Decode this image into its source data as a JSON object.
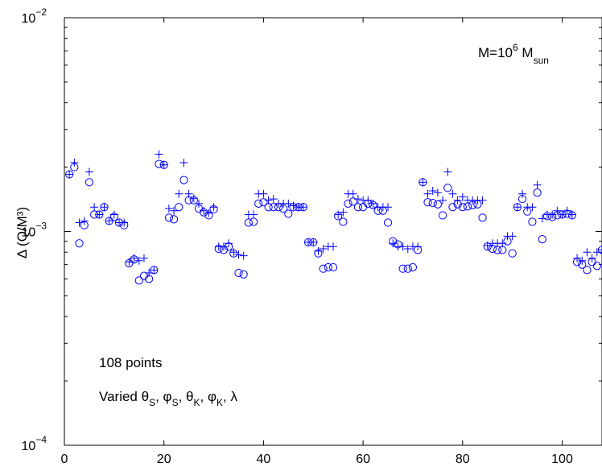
{
  "chart_data": {
    "type": "scatter",
    "title": "",
    "xlabel": "",
    "ylabel": "Δ (Q/M³)",
    "xlim": [
      0,
      108
    ],
    "ylim": [
      0.0001,
      0.01
    ],
    "yscale": "log",
    "grid": false,
    "x_ticks": [
      "0",
      "20",
      "40",
      "60",
      "80",
      "100"
    ],
    "y_ticks": [
      {
        "value": 0.01,
        "base": "10",
        "exp": "−2"
      },
      {
        "value": 0.001,
        "base": "10",
        "exp": "−3"
      },
      {
        "value": 0.0001,
        "base": "10",
        "exp": "−4"
      }
    ],
    "annotations": {
      "mass_prefix": "M=10",
      "mass_exp": "6",
      "mass_mid": " M",
      "mass_sub": "sun",
      "points_label": "108 points",
      "varied_prefix": "Varied ",
      "varied_items": [
        {
          "sym": "θ",
          "sub": "S"
        },
        {
          "sym": "φ",
          "sub": "S"
        },
        {
          "sym": "θ",
          "sub": "K"
        },
        {
          "sym": "φ",
          "sub": "K"
        }
      ],
      "varied_last": "λ"
    },
    "series": [
      {
        "marker": "circle",
        "color": "#0000ff",
        "x": [
          1,
          2,
          3,
          4,
          5,
          6,
          7,
          8,
          9,
          10,
          11,
          12,
          13,
          14,
          15,
          16,
          17,
          18,
          19,
          20,
          21,
          22,
          23,
          24,
          25,
          26,
          27,
          28,
          29,
          30,
          31,
          32,
          33,
          34,
          35,
          36,
          37,
          38,
          39,
          40,
          41,
          42,
          43,
          44,
          45,
          46,
          47,
          48,
          49,
          50,
          51,
          52,
          53,
          54,
          55,
          56,
          57,
          58,
          59,
          60,
          61,
          62,
          63,
          64,
          65,
          66,
          67,
          68,
          69,
          70,
          71,
          72,
          73,
          74,
          75,
          76,
          77,
          78,
          79,
          80,
          81,
          82,
          83,
          84,
          85,
          86,
          87,
          88,
          89,
          90,
          91,
          92,
          93,
          94,
          95,
          96,
          97,
          98,
          99,
          100,
          101,
          102,
          103,
          104,
          105,
          106,
          107,
          108
        ],
        "values": [
          0.00185,
          0.002,
          0.00088,
          0.00107,
          0.0017,
          0.0012,
          0.0012,
          0.0013,
          0.00112,
          0.00117,
          0.0011,
          0.00107,
          0.00071,
          0.00074,
          0.00059,
          0.00062,
          0.0006,
          0.00066,
          0.00207,
          0.00205,
          0.00116,
          0.00114,
          0.0013,
          0.00174,
          0.0014,
          0.0014,
          0.00128,
          0.00123,
          0.00119,
          0.00127,
          0.00083,
          0.00082,
          0.00085,
          0.00079,
          0.00064,
          0.00063,
          0.0011,
          0.00111,
          0.00135,
          0.00137,
          0.0013,
          0.0013,
          0.0013,
          0.00128,
          0.00121,
          0.0013,
          0.0013,
          0.0013,
          0.00089,
          0.00089,
          0.00079,
          0.00067,
          0.00068,
          0.00068,
          0.00118,
          0.00111,
          0.00135,
          0.00138,
          0.0013,
          0.0013,
          0.00135,
          0.00133,
          0.00125,
          0.00125,
          0.0011,
          0.0009,
          0.00087,
          0.00067,
          0.00067,
          0.00068,
          0.00082,
          0.0017,
          0.00137,
          0.00136,
          0.00134,
          0.00119,
          0.0016,
          0.0013,
          0.00134,
          0.0013,
          0.00131,
          0.00133,
          0.00134,
          0.00116,
          0.00085,
          0.00083,
          0.00082,
          0.00082,
          0.0009,
          0.00079,
          0.0013,
          0.00142,
          0.00124,
          0.00111,
          0.00152,
          0.00092,
          0.00118,
          0.00117,
          0.00119,
          0.0012,
          0.00121,
          0.00119,
          0.00072,
          0.0007,
          0.00066,
          0.00072,
          0.00069,
          0.00082
        ]
      },
      {
        "marker": "plus",
        "color": "#0000ff",
        "x": [
          1,
          2,
          3,
          4,
          5,
          6,
          7,
          8,
          9,
          10,
          11,
          12,
          13,
          14,
          15,
          16,
          17,
          18,
          19,
          20,
          21,
          22,
          23,
          24,
          25,
          26,
          27,
          28,
          29,
          30,
          31,
          32,
          33,
          34,
          35,
          36,
          37,
          38,
          39,
          40,
          41,
          42,
          43,
          44,
          45,
          46,
          47,
          48,
          49,
          50,
          51,
          52,
          53,
          54,
          55,
          56,
          57,
          58,
          59,
          60,
          61,
          62,
          63,
          64,
          65,
          66,
          67,
          68,
          69,
          70,
          71,
          72,
          73,
          74,
          75,
          76,
          77,
          78,
          79,
          80,
          81,
          82,
          83,
          84,
          85,
          86,
          87,
          88,
          89,
          90,
          91,
          92,
          93,
          94,
          95,
          96,
          97,
          98,
          99,
          100,
          101,
          102,
          103,
          104,
          105,
          106,
          107,
          108
        ],
        "values": [
          0.00185,
          0.0021,
          0.0011,
          0.00112,
          0.0019,
          0.0013,
          0.0012,
          0.0013,
          0.00112,
          0.0012,
          0.0011,
          0.0011,
          0.00072,
          0.00075,
          0.00073,
          0.00075,
          0.00064,
          0.00066,
          0.0023,
          0.00205,
          0.00128,
          0.00125,
          0.0015,
          0.0021,
          0.0015,
          0.00143,
          0.00135,
          0.00125,
          0.00122,
          0.0013,
          0.00085,
          0.00085,
          0.00088,
          0.0008,
          0.00078,
          0.00077,
          0.0012,
          0.0012,
          0.0015,
          0.0015,
          0.0014,
          0.00142,
          0.00135,
          0.00135,
          0.00135,
          0.00132,
          0.0013,
          0.0013,
          0.00089,
          0.00089,
          0.00081,
          0.00083,
          0.00085,
          0.00085,
          0.0012,
          0.00123,
          0.0015,
          0.0015,
          0.00142,
          0.0014,
          0.0014,
          0.00135,
          0.0013,
          0.0013,
          0.0013,
          0.00088,
          0.00085,
          0.00085,
          0.00083,
          0.00085,
          0.00085,
          0.0017,
          0.0015,
          0.00155,
          0.00152,
          0.0014,
          0.0019,
          0.0015,
          0.0014,
          0.00145,
          0.0014,
          0.0014,
          0.0014,
          0.0014,
          0.00086,
          0.00088,
          0.00088,
          0.00088,
          0.00095,
          0.00095,
          0.0013,
          0.0015,
          0.0013,
          0.0013,
          0.00165,
          0.00115,
          0.0012,
          0.0012,
          0.00125,
          0.0012,
          0.00125,
          0.0012,
          0.00075,
          0.00073,
          0.0008,
          0.00075,
          0.0008,
          0.00082
        ]
      }
    ]
  }
}
